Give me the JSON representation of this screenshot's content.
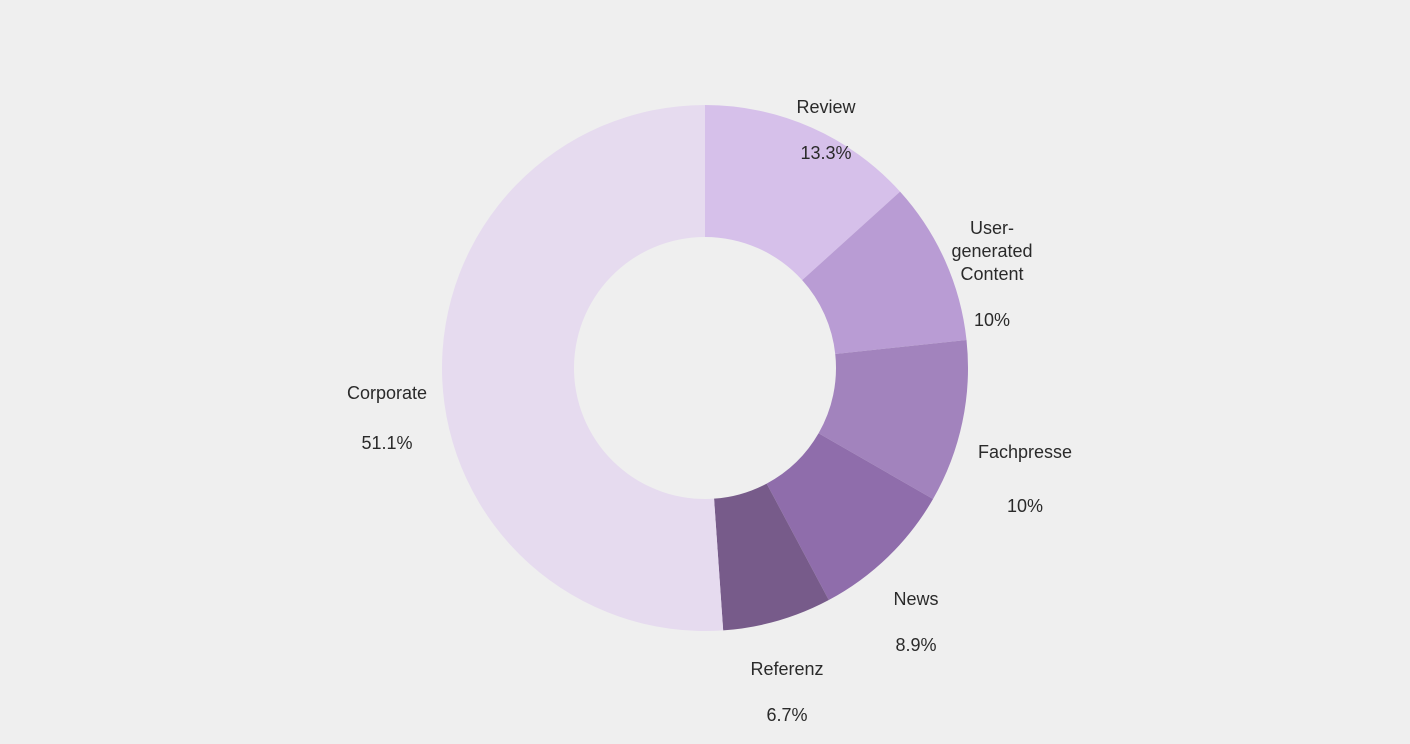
{
  "chart_data": {
    "type": "pie",
    "variant": "donut",
    "title": "",
    "categories": [
      "Review",
      "User-generated Content",
      "Fachpresse",
      "News",
      "Referenz",
      "Corporate"
    ],
    "values": [
      13.3,
      10,
      10,
      8.9,
      6.7,
      51.1
    ],
    "colors": [
      "#d6c0ea",
      "#b99cd4",
      "#a283bd",
      "#8f6dab",
      "#775b8a",
      "#e6dbef"
    ],
    "labels": [
      {
        "name": "Review",
        "value": "13.3%"
      },
      {
        "name": "User-\ngenerated\nContent",
        "value": "10%"
      },
      {
        "name": "Fachpresse",
        "value": "10%"
      },
      {
        "name": "News",
        "value": "8.9%"
      },
      {
        "name": "Referenz",
        "value": "6.7%"
      },
      {
        "name": "Corporate",
        "value": "51.1%"
      }
    ],
    "start_angle": "top, clockwise",
    "legend": "none"
  }
}
